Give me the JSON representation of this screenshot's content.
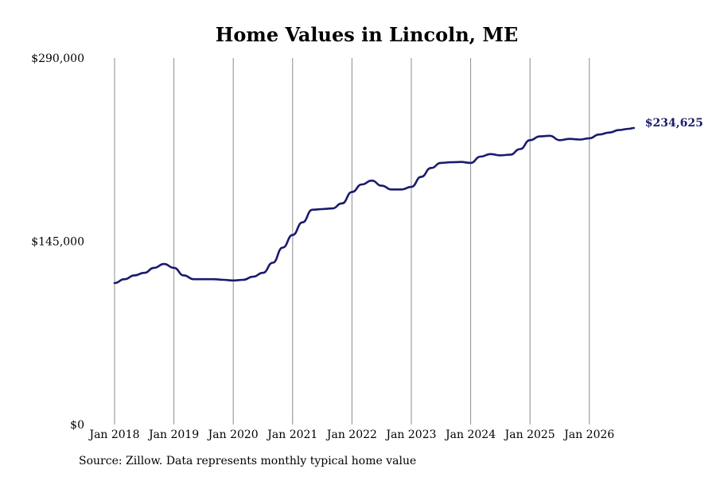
{
  "chart_data": {
    "type": "line",
    "title": "Home Values in Lincoln, ME",
    "xlabel": "",
    "ylabel": "",
    "ylim": [
      0,
      290000
    ],
    "y_ticks": [
      0,
      145000,
      290000
    ],
    "y_tick_labels": [
      "$0",
      "$145,000",
      "$290,000"
    ],
    "x_range": [
      "2018-01",
      "2026-10"
    ],
    "x_ticks": [
      "2018-01",
      "2019-01",
      "2020-01",
      "2021-01",
      "2022-01",
      "2023-01",
      "2024-01",
      "2025-01",
      "2026-01"
    ],
    "x_tick_labels": [
      "Jan 2018",
      "Jan 2019",
      "Jan 2020",
      "Jan 2021",
      "Jan 2022",
      "Jan 2023",
      "Jan 2024",
      "Jan 2025",
      "Jan 2026"
    ],
    "grid": "vertical lines at x ticks",
    "series_color": "#1a1a6e",
    "end_label": "$234,625",
    "series": [
      {
        "x": [
          "2018-01",
          "2018-03",
          "2018-05",
          "2018-07",
          "2018-09",
          "2018-11",
          "2019-01",
          "2019-03",
          "2019-05",
          "2019-07",
          "2019-09",
          "2019-11",
          "2020-01",
          "2020-03",
          "2020-05",
          "2020-07",
          "2020-09",
          "2020-11",
          "2021-01",
          "2021-03",
          "2021-05",
          "2021-07",
          "2021-09",
          "2021-11",
          "2022-01",
          "2022-03",
          "2022-05",
          "2022-07",
          "2022-09",
          "2022-11",
          "2023-01",
          "2023-03",
          "2023-05",
          "2023-07",
          "2023-09",
          "2023-11",
          "2024-01",
          "2024-03",
          "2024-05",
          "2024-07",
          "2024-09",
          "2024-11",
          "2025-01",
          "2025-03",
          "2025-05",
          "2025-07",
          "2025-09",
          "2025-11",
          "2026-01",
          "2026-03",
          "2026-05",
          "2026-07",
          "2026-09",
          "2026-10"
        ],
        "values": [
          112000,
          115000,
          118000,
          120000,
          124000,
          127000,
          124000,
          118000,
          115000,
          115000,
          115000,
          114500,
          114000,
          114500,
          117000,
          120000,
          128000,
          140000,
          150000,
          160000,
          170000,
          170500,
          171000,
          175000,
          184000,
          190000,
          193000,
          189000,
          186000,
          186000,
          188000,
          196000,
          203000,
          207000,
          207500,
          207800,
          207000,
          212000,
          214000,
          213000,
          213500,
          218000,
          225000,
          228000,
          228500,
          225000,
          226000,
          225500,
          226500,
          229500,
          231000,
          233000,
          234000,
          234625
        ]
      }
    ]
  },
  "source_text": "Source: Zillow. Data represents monthly typical home value"
}
